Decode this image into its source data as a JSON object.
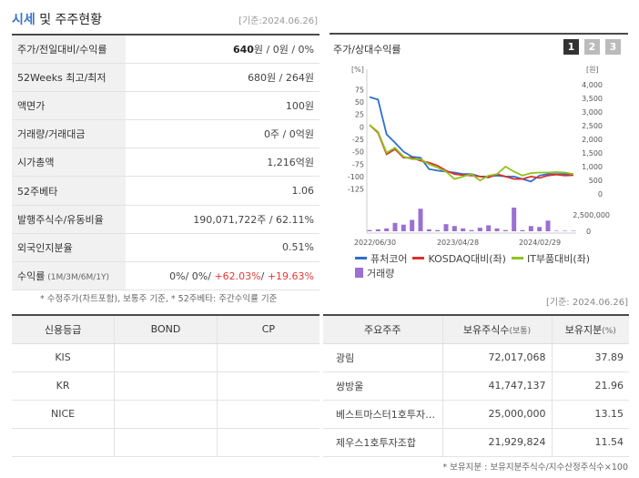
{
  "header": {
    "title_accent": "시세",
    "title_rest": " 및 주주현황",
    "stamp": "[기준:2024.06.26]"
  },
  "market": {
    "rows": [
      {
        "label": "주가/전일대비/수익률",
        "value_html": "<b>640</b>원 / 0원 / 0%"
      },
      {
        "label": "52Weeks 최고/최저",
        "value_html": "680원 / 264원"
      },
      {
        "label": "액면가",
        "value_html": "100원"
      },
      {
        "label": "거래량/거래대금",
        "value_html": "0주 / 0억원"
      },
      {
        "label": "시가총액",
        "value_html": "1,216억원"
      },
      {
        "label": "52주베타",
        "value_html": "1.06"
      },
      {
        "label": "발행주식수/유동비율",
        "value_html": "190,071,722주 / 62.11%"
      },
      {
        "label": "외국인지분율",
        "value_html": "0.51%"
      },
      {
        "label": "수익률",
        "label_small": "(1M/3M/6M/1Y)",
        "value_html": "0%/ 0%/ <span class=\"red\">+62.03%</span>/ <span class=\"red\">+19.63%</span>"
      }
    ],
    "footnote": "* 수정주가(차트포함), 보통주 기준, * 52주베타: 주간수익률 기준"
  },
  "chart_panel": {
    "title": "주가/상대수익률",
    "tabs": [
      "1",
      "2",
      "3"
    ],
    "active_tab": "1",
    "stamp": "[기준: 2024.06.26]"
  },
  "chart_data": {
    "type": "line",
    "left_axis_unit": "[%]",
    "right_axis_unit": "[원]",
    "left_ticks": [
      75,
      50,
      25,
      0,
      -25,
      -50,
      -75,
      -100,
      -125
    ],
    "right_ticks": [
      "4,000",
      "3,500",
      "3,000",
      "2,500",
      "2,000",
      "1,500",
      "1,000",
      "500",
      "0"
    ],
    "volume_ticks": [
      "2,500,000",
      "0"
    ],
    "x_labels": [
      "2022/06/30",
      "2023/04/28",
      "2024/02/29"
    ],
    "ylim_left": [
      -135,
      85
    ],
    "series": [
      {
        "name": "퓨처코어",
        "color": "#2f6fd0",
        "values": [
          60,
          55,
          -15,
          -32,
          -50,
          -60,
          -62,
          -85,
          -88,
          -90,
          -92,
          -95,
          -95,
          -100,
          -100,
          -98,
          -100,
          -100,
          -105,
          -110,
          -98,
          -95,
          -95,
          -95,
          -95
        ]
      },
      {
        "name": "KOSDAQ대비(좌)",
        "color": "#d9322c",
        "values": [
          4,
          -12,
          -55,
          -45,
          -62,
          -62,
          -68,
          -72,
          -78,
          -88,
          -95,
          -97,
          -98,
          -100,
          -102,
          -95,
          -100,
          -105,
          -105,
          -100,
          -103,
          -98,
          -96,
          -98,
          -97
        ]
      },
      {
        "name": "IT부품대비(좌)",
        "color": "#8fc31f",
        "values": [
          4,
          -10,
          -52,
          -42,
          -60,
          -65,
          -65,
          -75,
          -82,
          -90,
          -105,
          -100,
          -95,
          -108,
          -98,
          -95,
          -80,
          -90,
          -98,
          -93,
          -92,
          -92,
          -91,
          -92,
          -95
        ]
      }
    ],
    "volume": {
      "name": "거래량",
      "color": "#9b6fd3",
      "values": [
        0.05,
        0.08,
        0.12,
        0.35,
        0.28,
        0.48,
        0.95,
        0.08,
        0.05,
        0.3,
        0.22,
        0.12,
        0.05,
        0.15,
        0.25,
        0.12,
        0.05,
        1.0,
        0.05,
        0.22,
        0.18,
        0.45,
        0.02,
        0.02,
        0.02
      ]
    }
  },
  "legend": [
    {
      "label": "퓨처코어",
      "color": "#2f6fd0",
      "kind": "line"
    },
    {
      "label": "KOSDAQ대비(좌)",
      "color": "#d9322c",
      "kind": "line"
    },
    {
      "label": "IT부품대비(좌)",
      "color": "#8fc31f",
      "kind": "line"
    },
    {
      "label": "거래량",
      "color": "#9b6fd3",
      "kind": "bar"
    }
  ],
  "credit": {
    "headers": [
      "신용등급",
      "BOND",
      "CP"
    ],
    "rows": [
      [
        "KIS",
        "",
        ""
      ],
      [
        "KR",
        "",
        ""
      ],
      [
        "NICE",
        "",
        ""
      ],
      [
        "",
        "",
        ""
      ]
    ]
  },
  "shareholders": {
    "headers": [
      "주요주주",
      "보유주식수",
      "(보통)",
      "보유지분",
      "(%)"
    ],
    "rows": [
      {
        "name": "광림",
        "shares": "72,017,068",
        "pct": "37.89"
      },
      {
        "name": "쌍방울",
        "shares": "41,747,137",
        "pct": "21.96"
      },
      {
        "name": "베스트마스터1호투자…",
        "shares": "25,000,000",
        "pct": "13.15"
      },
      {
        "name": "제우스1호투자조합",
        "shares": "21,929,824",
        "pct": "11.54"
      }
    ],
    "footnote": "* 보유지분 : 보유지분주식수/지수산정주식수×100"
  }
}
